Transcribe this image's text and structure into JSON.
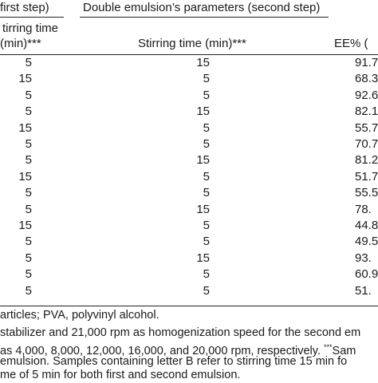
{
  "headers": {
    "first_group": "first step)",
    "second_group": "Double emulsion’s parameters (second step)"
  },
  "subheaders": {
    "stirring_time_line1": "tirring time",
    "stirring_time_line2": "(min)***",
    "stirring_time_second": "Stirring time (min)***",
    "ee": "EE% ("
  },
  "rows": [
    {
      "first": "5",
      "second": "15",
      "ee": "91.7"
    },
    {
      "first": "15",
      "second": "5",
      "ee": "68.3"
    },
    {
      "first": "5",
      "second": "5",
      "ee": "92.6"
    },
    {
      "first": "5",
      "second": "15",
      "ee": "82.1"
    },
    {
      "first": "15",
      "second": "5",
      "ee": "55.7"
    },
    {
      "first": "5",
      "second": "5",
      "ee": "70.7"
    },
    {
      "first": "5",
      "second": "15",
      "ee": "81.2"
    },
    {
      "first": "15",
      "second": "5",
      "ee": "51.7"
    },
    {
      "first": "5",
      "second": "5",
      "ee": "55.5"
    },
    {
      "first": "5",
      "second": "15",
      "ee": "78."
    },
    {
      "first": "15",
      "second": "5",
      "ee": "44.8"
    },
    {
      "first": "5",
      "second": "5",
      "ee": "49.5"
    },
    {
      "first": "5",
      "second": "15",
      "ee": "93."
    },
    {
      "first": "5",
      "second": "5",
      "ee": "60.9"
    },
    {
      "first": "5",
      "second": "5",
      "ee": "51."
    }
  ],
  "footnotes": {
    "line1": "articles; PVA, polyvinyl alcohol.",
    "line2": "stabilizer and 21,000 rpm as homogenization speed for the second em",
    "line3a": "as 4,000, 8,000, 12,000, 16,000, and 20,000 rpm, respectively. ",
    "line3sup": "***",
    "line3b": "Sam",
    "line4": " emulsion. Samples containing letter B refer to stirring time 15 min fo",
    "line5": "me of 5 min for both first and second emulsion."
  }
}
